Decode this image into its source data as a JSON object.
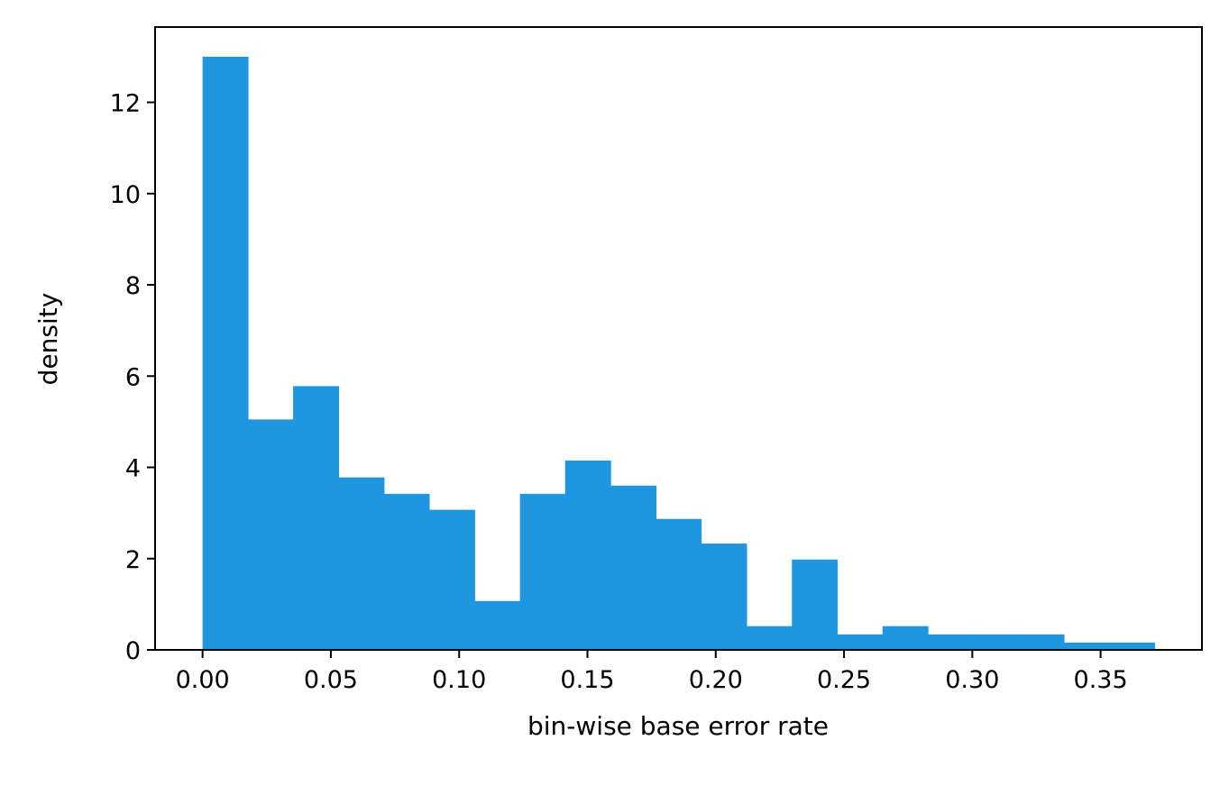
{
  "chart_data": {
    "type": "bar",
    "subtype": "histogram",
    "title": "",
    "xlabel": "bin-wise base error rate",
    "ylabel": "density",
    "xlim": [
      -0.0185,
      0.3895
    ],
    "ylim": [
      0,
      13.65
    ],
    "x_ticks": [
      0.0,
      0.05,
      0.1,
      0.15,
      0.2,
      0.25,
      0.3,
      0.35
    ],
    "x_tick_labels": [
      "0.00",
      "0.05",
      "0.10",
      "0.15",
      "0.20",
      "0.25",
      "0.30",
      "0.35"
    ],
    "y_ticks": [
      0,
      2,
      4,
      6,
      8,
      10,
      12
    ],
    "y_tick_labels": [
      "0",
      "2",
      "4",
      "6",
      "8",
      "10",
      "12"
    ],
    "bin_edges": [
      0.0,
      0.0177,
      0.0353,
      0.053,
      0.0707,
      0.0883,
      0.106,
      0.1237,
      0.1413,
      0.159,
      0.1767,
      0.1943,
      0.212,
      0.2297,
      0.2473,
      0.265,
      0.2827,
      0.3003,
      0.318,
      0.3357,
      0.3533,
      0.371
    ],
    "values": [
      13.0,
      5.05,
      5.78,
      3.78,
      3.42,
      3.07,
      1.07,
      3.42,
      4.15,
      3.6,
      2.87,
      2.33,
      0.52,
      1.98,
      0.34,
      0.52,
      0.34,
      0.34,
      0.34,
      0.16,
      0.16
    ],
    "grid": false,
    "bar_color": "#1f97e0"
  }
}
